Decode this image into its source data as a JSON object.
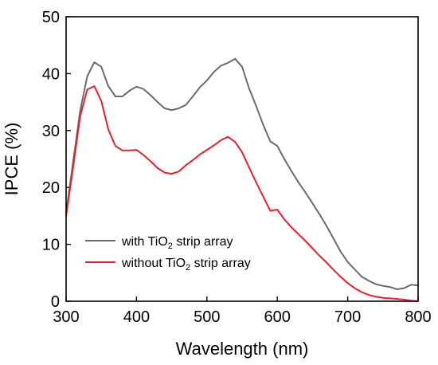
{
  "chart_data": {
    "type": "line",
    "xlabel": "Wavelength (nm)",
    "ylabel": "IPCE (%)",
    "xlim": [
      300,
      800
    ],
    "ylim": [
      0,
      50
    ],
    "xticks": [
      300,
      400,
      500,
      600,
      700,
      800
    ],
    "yticks": [
      0,
      10,
      20,
      30,
      40,
      50
    ],
    "grid": false,
    "legend_position": "lower-left",
    "series": [
      {
        "name": "with TiO₂ strip array",
        "legend_prefix": "with TiO",
        "legend_sub": "2",
        "legend_suffix": " strip array",
        "color": "#6b6b6b",
        "x": [
          300,
          310,
          320,
          330,
          340,
          350,
          360,
          370,
          380,
          390,
          400,
          410,
          420,
          430,
          440,
          450,
          460,
          470,
          480,
          490,
          500,
          510,
          520,
          530,
          540,
          550,
          560,
          570,
          580,
          590,
          600,
          610,
          620,
          630,
          640,
          650,
          660,
          670,
          680,
          690,
          700,
          710,
          720,
          730,
          740,
          750,
          760,
          770,
          780,
          790,
          800
        ],
        "y": [
          15.5,
          24.5,
          33.5,
          39.5,
          42.0,
          41.2,
          37.8,
          36.0,
          36.0,
          37.0,
          37.7,
          37.3,
          36.2,
          35.0,
          33.9,
          33.6,
          33.9,
          34.5,
          36.0,
          37.6,
          38.8,
          40.3,
          41.4,
          41.9,
          42.6,
          41.2,
          37.4,
          34.3,
          31.0,
          28.1,
          27.3,
          25.0,
          22.9,
          20.9,
          19.1,
          17.2,
          15.3,
          13.2,
          11.0,
          8.7,
          6.9,
          5.6,
          4.3,
          3.6,
          3.0,
          2.7,
          2.5,
          2.1,
          2.3,
          2.9,
          2.8
        ]
      },
      {
        "name": "without TiO₂ strip array",
        "legend_prefix": "without TiO",
        "legend_sub": "2",
        "legend_suffix": " strip array",
        "color": "#e8202a",
        "x": [
          300,
          310,
          320,
          330,
          340,
          350,
          360,
          370,
          380,
          390,
          400,
          410,
          420,
          430,
          440,
          450,
          460,
          470,
          480,
          490,
          500,
          510,
          520,
          530,
          540,
          550,
          560,
          570,
          580,
          590,
          600,
          610,
          620,
          630,
          640,
          650,
          660,
          670,
          680,
          690,
          700,
          710,
          720,
          730,
          740,
          750,
          760,
          770,
          780,
          790,
          800
        ],
        "y": [
          15.0,
          23.5,
          32.5,
          37.2,
          37.8,
          35.2,
          30.2,
          27.3,
          26.5,
          26.5,
          26.6,
          25.7,
          24.6,
          23.4,
          22.6,
          22.4,
          22.8,
          23.9,
          24.8,
          25.8,
          26.6,
          27.4,
          28.3,
          28.9,
          28.0,
          26.2,
          23.5,
          20.9,
          18.4,
          15.9,
          16.1,
          14.4,
          13.0,
          11.8,
          10.6,
          9.3,
          8.0,
          6.8,
          5.5,
          4.3,
          3.2,
          2.3,
          1.6,
          1.1,
          0.8,
          0.6,
          0.5,
          0.4,
          0.3,
          0.1,
          0.0
        ]
      }
    ]
  }
}
